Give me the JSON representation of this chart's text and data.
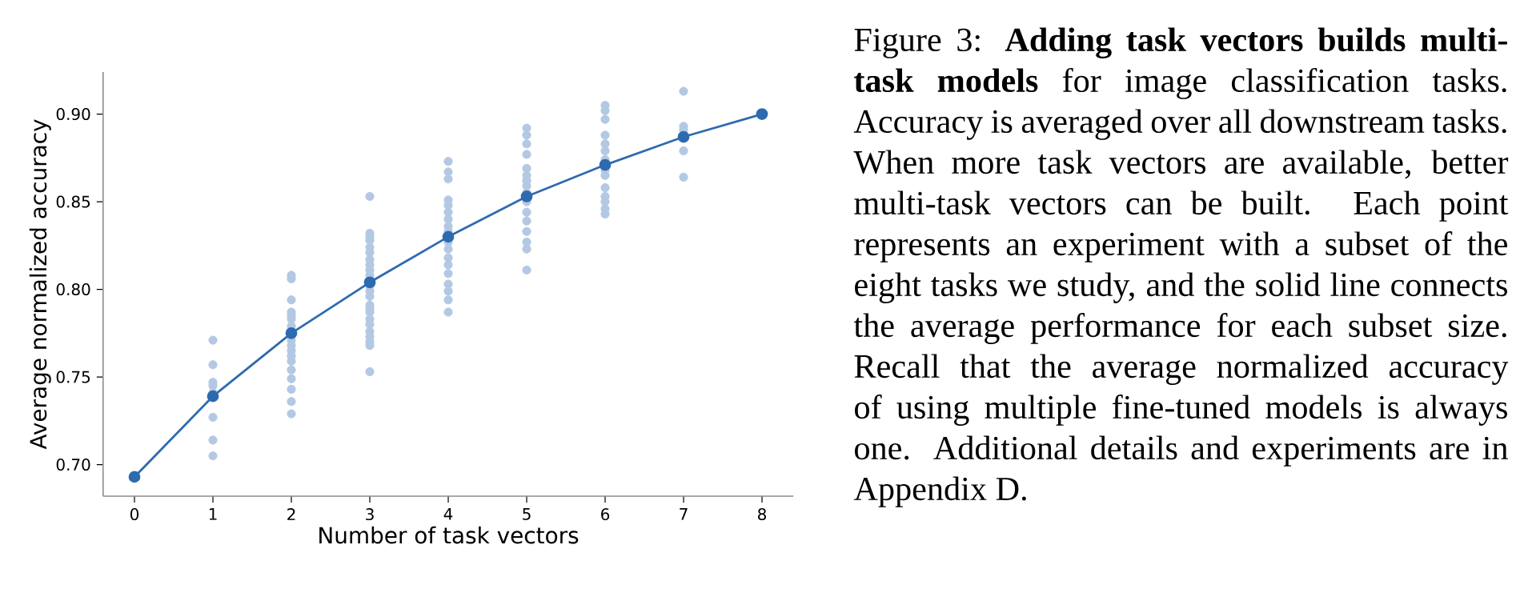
{
  "chart_data": {
    "type": "scatter",
    "xlabel": "Number of task vectors",
    "ylabel": "Average normalized accuracy",
    "annotations": [
      "Figure 3:  **Adding task vectors builds multi-task models** for image classification tasks. Accuracy is averaged over all downstream tasks. When more task vectors are available, better multi-task vectors can be built. Each point represents an experiment with a subset of the eight tasks we study, and the solid line connects the average performance for each subset size. Recall that the average normalized accuracy of using multiple fine-tuned models is always one. Additional details and experiments are in Appendix D."
    ],
    "xlim": [
      -0.4,
      8.4
    ],
    "ylim": [
      0.682,
      0.924
    ],
    "xticks": [
      0,
      1,
      2,
      3,
      4,
      5,
      6,
      7,
      8
    ],
    "yticks": [
      {
        "value": 0.7,
        "label": "0.70"
      },
      {
        "value": 0.75,
        "label": "0.75"
      },
      {
        "value": 0.8,
        "label": "0.80"
      },
      {
        "value": 0.85,
        "label": "0.85"
      },
      {
        "value": 0.9,
        "label": "0.90"
      }
    ],
    "grid": false,
    "marker": "circle",
    "series": [
      {
        "color": "#b3c8e3",
        "x": [
          1,
          1,
          1,
          1,
          1,
          1,
          1,
          1,
          2,
          2,
          2,
          2,
          2,
          2,
          2,
          2,
          2,
          2,
          2,
          2,
          2,
          2,
          2,
          2,
          2,
          3,
          3,
          3,
          3,
          3,
          3,
          3,
          3,
          3,
          3,
          3,
          3,
          3,
          3,
          3,
          3,
          3,
          3,
          3,
          3,
          3,
          3,
          3,
          4,
          4,
          4,
          4,
          4,
          4,
          4,
          4,
          4,
          4,
          4,
          4,
          4,
          4,
          4,
          4,
          4,
          4,
          5,
          5,
          5,
          5,
          5,
          5,
          5,
          5,
          5,
          5,
          5,
          5,
          5,
          5,
          5,
          5,
          6,
          6,
          6,
          6,
          6,
          6,
          6,
          6,
          6,
          6,
          6,
          6,
          6,
          6,
          7,
          7,
          7,
          7,
          7
        ],
        "values": [
          0.771,
          0.757,
          0.747,
          0.745,
          0.741,
          0.727,
          0.714,
          0.705,
          0.808,
          0.806,
          0.794,
          0.787,
          0.785,
          0.783,
          0.779,
          0.771,
          0.768,
          0.765,
          0.762,
          0.759,
          0.754,
          0.749,
          0.743,
          0.736,
          0.729,
          0.853,
          0.832,
          0.83,
          0.828,
          0.824,
          0.821,
          0.817,
          0.814,
          0.811,
          0.808,
          0.802,
          0.799,
          0.796,
          0.791,
          0.789,
          0.787,
          0.783,
          0.78,
          0.776,
          0.773,
          0.77,
          0.768,
          0.753,
          0.873,
          0.867,
          0.863,
          0.851,
          0.848,
          0.844,
          0.84,
          0.836,
          0.833,
          0.827,
          0.823,
          0.818,
          0.814,
          0.809,
          0.803,
          0.799,
          0.794,
          0.787,
          0.892,
          0.888,
          0.883,
          0.877,
          0.869,
          0.865,
          0.862,
          0.859,
          0.855,
          0.85,
          0.844,
          0.839,
          0.833,
          0.827,
          0.823,
          0.811,
          0.905,
          0.902,
          0.897,
          0.888,
          0.883,
          0.879,
          0.874,
          0.868,
          0.865,
          0.858,
          0.853,
          0.85,
          0.846,
          0.843,
          0.913,
          0.893,
          0.891,
          0.879,
          0.864
        ]
      },
      {
        "type": "line",
        "color": "#2e6aaf",
        "x": [
          0,
          1,
          2,
          3,
          4,
          5,
          6,
          7,
          8
        ],
        "values": [
          0.693,
          0.739,
          0.775,
          0.804,
          0.83,
          0.853,
          0.871,
          0.887,
          0.9
        ]
      }
    ]
  }
}
